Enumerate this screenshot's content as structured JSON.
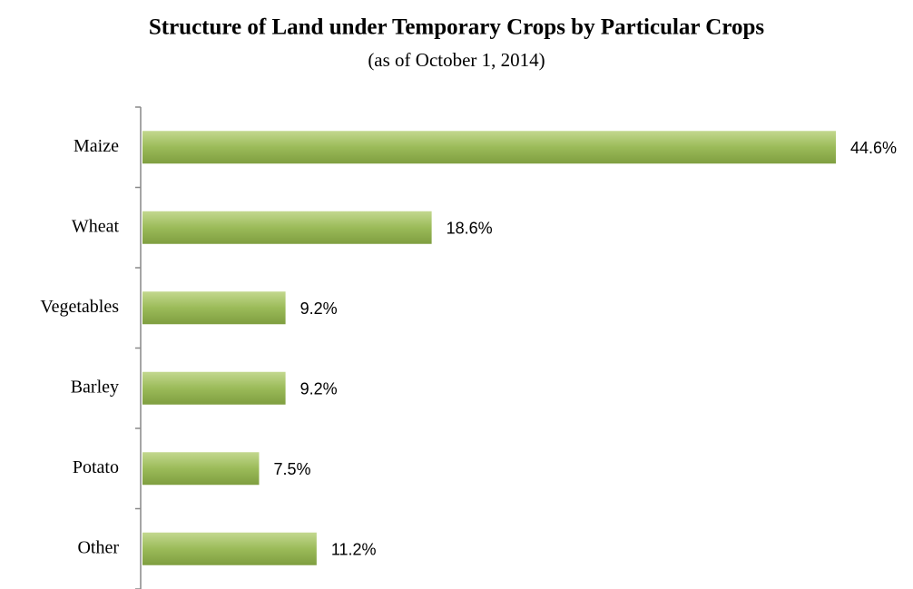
{
  "chart_data": {
    "type": "bar",
    "orientation": "horizontal",
    "title": "Structure of Land under Temporary Crops by Particular Crops",
    "subtitle": "(as of October 1, 2014)",
    "categories": [
      "Maize",
      "Wheat",
      "Vegetables",
      "Barley",
      "Potato",
      "Other"
    ],
    "values": [
      44.6,
      18.6,
      9.2,
      9.2,
      7.5,
      11.2
    ],
    "value_labels": [
      "44.6%",
      "18.6%",
      "9.2%",
      "9.2%",
      "7.5%",
      "11.2%"
    ],
    "color": "#9bbb59"
  }
}
